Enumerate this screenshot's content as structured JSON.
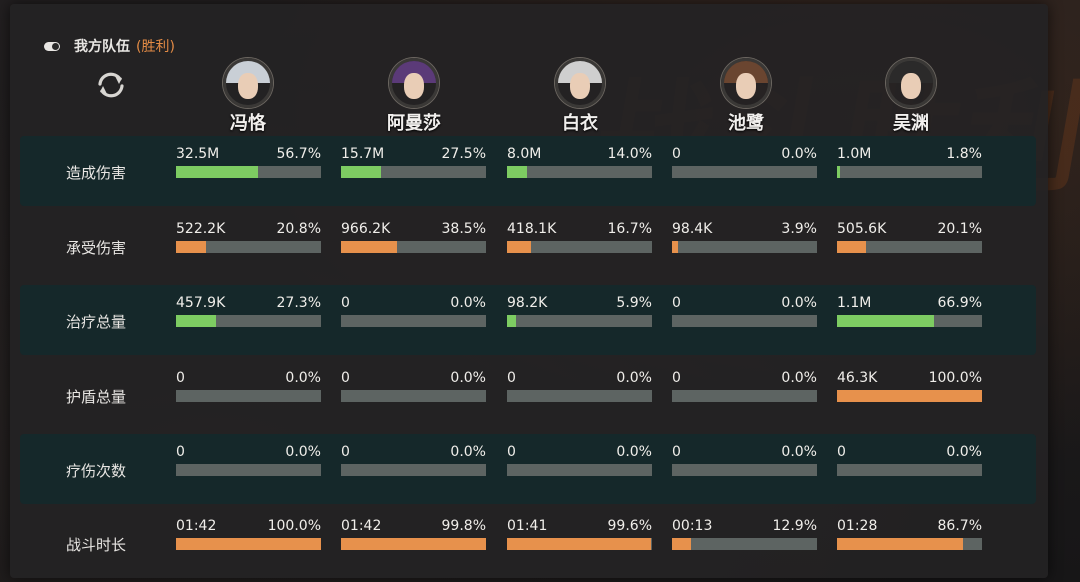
{
  "header": {
    "team_label": "我方队伍",
    "result_label": "(胜利)"
  },
  "heroes": [
    {
      "name": "冯恪",
      "hair": "#c9cfd6"
    },
    {
      "name": "阿曼莎",
      "hair": "#5b3a78"
    },
    {
      "name": "白衣",
      "hair": "#cfcfcf"
    },
    {
      "name": "池鹭",
      "hair": "#6a4530"
    },
    {
      "name": "吴渊",
      "hair": "#2b2a2a"
    }
  ],
  "colors": {
    "good": "#7dcc62",
    "normal": "#e7914c"
  },
  "stats": [
    {
      "label": "造成伤害",
      "style": "green",
      "cells": [
        {
          "value": "32.5M",
          "pct": "56.7%",
          "fill": 56.7
        },
        {
          "value": "15.7M",
          "pct": "27.5%",
          "fill": 27.5
        },
        {
          "value": "8.0M",
          "pct": "14.0%",
          "fill": 14.0
        },
        {
          "value": "0",
          "pct": "0.0%",
          "fill": 0
        },
        {
          "value": "1.0M",
          "pct": "1.8%",
          "fill": 1.8
        }
      ]
    },
    {
      "label": "承受伤害",
      "style": "orange",
      "cells": [
        {
          "value": "522.2K",
          "pct": "20.8%",
          "fill": 20.8
        },
        {
          "value": "966.2K",
          "pct": "38.5%",
          "fill": 38.5
        },
        {
          "value": "418.1K",
          "pct": "16.7%",
          "fill": 16.7
        },
        {
          "value": "98.4K",
          "pct": "3.9%",
          "fill": 3.9
        },
        {
          "value": "505.6K",
          "pct": "20.1%",
          "fill": 20.1
        }
      ]
    },
    {
      "label": "治疗总量",
      "style": "green",
      "cells": [
        {
          "value": "457.9K",
          "pct": "27.3%",
          "fill": 27.3
        },
        {
          "value": "0",
          "pct": "0.0%",
          "fill": 0
        },
        {
          "value": "98.2K",
          "pct": "5.9%",
          "fill": 5.9
        },
        {
          "value": "0",
          "pct": "0.0%",
          "fill": 0
        },
        {
          "value": "1.1M",
          "pct": "66.9%",
          "fill": 66.9
        }
      ]
    },
    {
      "label": "护盾总量",
      "style": "orange",
      "cells": [
        {
          "value": "0",
          "pct": "0.0%",
          "fill": 0
        },
        {
          "value": "0",
          "pct": "0.0%",
          "fill": 0
        },
        {
          "value": "0",
          "pct": "0.0%",
          "fill": 0
        },
        {
          "value": "0",
          "pct": "0.0%",
          "fill": 0
        },
        {
          "value": "46.3K",
          "pct": "100.0%",
          "fill": 100
        }
      ]
    },
    {
      "label": "疗伤次数",
      "style": "green",
      "cells": [
        {
          "value": "0",
          "pct": "0.0%",
          "fill": 0
        },
        {
          "value": "0",
          "pct": "0.0%",
          "fill": 0
        },
        {
          "value": "0",
          "pct": "0.0%",
          "fill": 0
        },
        {
          "value": "0",
          "pct": "0.0%",
          "fill": 0
        },
        {
          "value": "0",
          "pct": "0.0%",
          "fill": 0
        }
      ]
    },
    {
      "label": "战斗时长",
      "style": "orange",
      "cells": [
        {
          "value": "01:42",
          "pct": "100.0%",
          "fill": 100
        },
        {
          "value": "01:42",
          "pct": "99.8%",
          "fill": 99.8
        },
        {
          "value": "01:41",
          "pct": "99.6%",
          "fill": 99.6
        },
        {
          "value": "00:13",
          "pct": "12.9%",
          "fill": 12.9
        },
        {
          "value": "01:28",
          "pct": "86.7%",
          "fill": 86.7
        }
      ]
    }
  ]
}
